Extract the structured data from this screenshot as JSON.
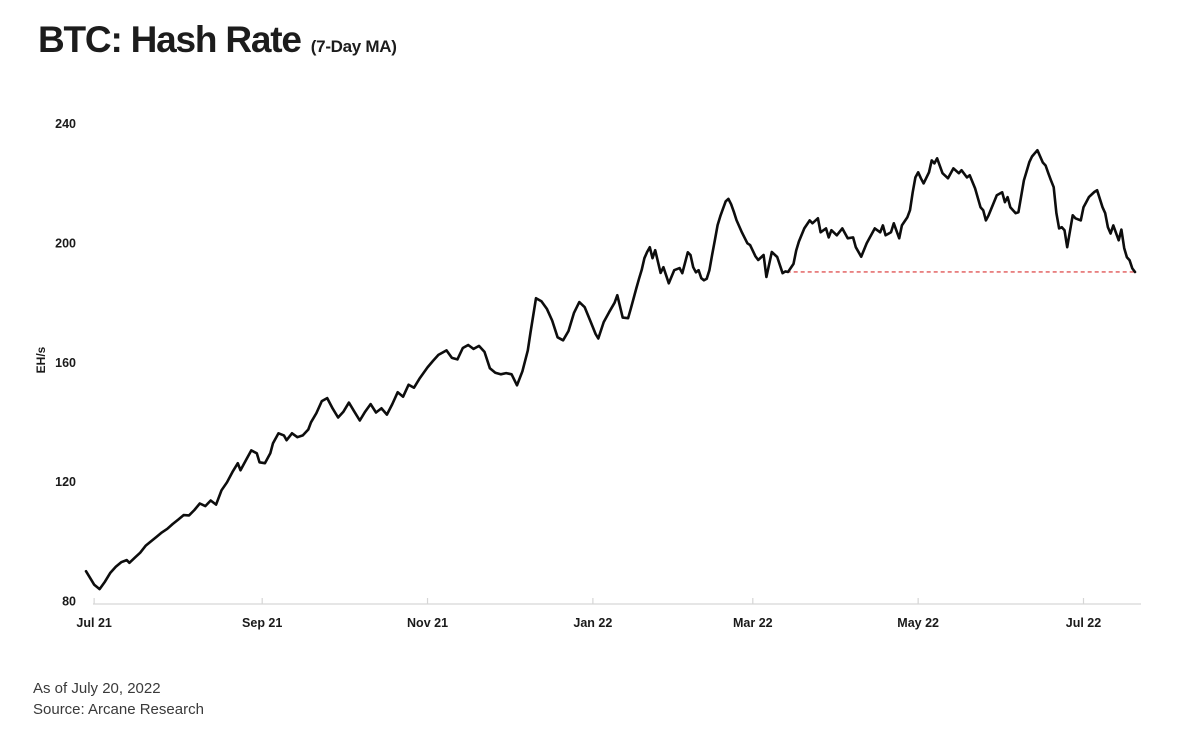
{
  "header": {
    "title": "BTC: Hash Rate",
    "subtitle": "(7-Day MA)"
  },
  "footer": {
    "as_of": "As of July 20, 2022",
    "source": "Source: Arcane Research"
  },
  "colors": {
    "background": "#ffffff",
    "line": "#0d0d0d",
    "reference": "#e05757",
    "axis": "#d6d6d6",
    "text": "#1a1a1a",
    "footer_text": "#3a3a3a"
  },
  "chart_data": {
    "type": "line",
    "title": "BTC: Hash Rate (7-Day MA)",
    "xlabel": "",
    "ylabel": "EH/s",
    "ylim": [
      80,
      240
    ],
    "yticks": [
      80,
      120,
      160,
      200,
      240
    ],
    "grid": false,
    "legend": false,
    "x_domain_days": [
      -3,
      384
    ],
    "x_domain_note": "days relative to Jul 1 2021; series ends Jul 20 2022",
    "xticks": [
      {
        "label": "Jul 21",
        "day": 0
      },
      {
        "label": "Sep 21",
        "day": 62
      },
      {
        "label": "Nov 21",
        "day": 123
      },
      {
        "label": "Jan 22",
        "day": 184
      },
      {
        "label": "Mar 22",
        "day": 243
      },
      {
        "label": "May 22",
        "day": 304
      },
      {
        "label": "Jul 22",
        "day": 365
      }
    ],
    "reference_line": {
      "value": 190.3,
      "from_day": 255.5,
      "to_day": 384,
      "color": "#e05757",
      "dash": [
        4,
        3
      ]
    },
    "series": [
      {
        "name": "BTC hash rate, 7-day moving average (EH/s)",
        "color": "#0d0d0d",
        "points": [
          [
            -3,
            90
          ],
          [
            -1,
            87
          ],
          [
            0,
            85.5
          ],
          [
            2,
            84
          ],
          [
            4,
            86.5
          ],
          [
            6,
            89.5
          ],
          [
            8,
            91.5
          ],
          [
            10,
            93
          ],
          [
            12,
            93.7
          ],
          [
            13,
            92.8
          ],
          [
            15,
            94.5
          ],
          [
            17,
            96.2
          ],
          [
            19,
            98.5
          ],
          [
            21,
            100
          ],
          [
            23,
            101.5
          ],
          [
            25,
            103
          ],
          [
            27,
            104.2
          ],
          [
            29,
            105.8
          ],
          [
            31,
            107.3
          ],
          [
            33,
            108.8
          ],
          [
            35,
            108.7
          ],
          [
            37,
            110.5
          ],
          [
            39,
            112.7
          ],
          [
            41,
            111.8
          ],
          [
            43,
            113.7
          ],
          [
            45,
            112.3
          ],
          [
            47,
            117.1
          ],
          [
            49,
            119.8
          ],
          [
            51,
            123.2
          ],
          [
            53,
            126.2
          ],
          [
            54,
            123.8
          ],
          [
            56,
            127.2
          ],
          [
            58,
            130.5
          ],
          [
            60,
            129.5
          ],
          [
            61,
            126.5
          ],
          [
            63,
            126.2
          ],
          [
            65,
            129.5
          ],
          [
            66,
            132.9
          ],
          [
            68,
            136.2
          ],
          [
            70,
            135.5
          ],
          [
            71,
            133.9
          ],
          [
            73,
            136.2
          ],
          [
            75,
            134.9
          ],
          [
            77,
            135.5
          ],
          [
            79,
            137.5
          ],
          [
            80,
            139.9
          ],
          [
            82,
            143
          ],
          [
            84,
            147
          ],
          [
            86,
            148
          ],
          [
            88,
            144.5
          ],
          [
            90,
            141.5
          ],
          [
            92,
            143.5
          ],
          [
            94,
            146.5
          ],
          [
            96,
            143.5
          ],
          [
            98,
            140.5
          ],
          [
            100,
            143.5
          ],
          [
            102,
            146
          ],
          [
            104,
            143.2
          ],
          [
            106,
            144.6
          ],
          [
            108,
            142.5
          ],
          [
            110,
            146
          ],
          [
            112,
            150
          ],
          [
            114,
            148.5
          ],
          [
            116,
            152.5
          ],
          [
            118,
            151.5
          ],
          [
            120,
            154.5
          ],
          [
            123,
            158.3
          ],
          [
            125,
            160.5
          ],
          [
            127,
            162.5
          ],
          [
            130,
            164
          ],
          [
            132,
            161.5
          ],
          [
            134,
            161
          ],
          [
            136,
            164.8
          ],
          [
            138,
            165.8
          ],
          [
            140,
            164.5
          ],
          [
            142,
            165.5
          ],
          [
            144,
            163.5
          ],
          [
            146,
            158
          ],
          [
            148,
            156.5
          ],
          [
            150,
            156
          ],
          [
            152,
            156.4
          ],
          [
            154,
            156
          ],
          [
            156,
            152.3
          ],
          [
            158,
            157
          ],
          [
            160,
            164
          ],
          [
            161,
            170
          ],
          [
            163,
            181.5
          ],
          [
            165,
            180.5
          ],
          [
            167,
            178
          ],
          [
            169,
            174
          ],
          [
            171,
            168.4
          ],
          [
            173,
            167.4
          ],
          [
            175,
            170.5
          ],
          [
            177,
            176.5
          ],
          [
            179,
            180.2
          ],
          [
            181,
            178.5
          ],
          [
            183,
            174
          ],
          [
            185,
            169.5
          ],
          [
            186,
            168
          ],
          [
            188,
            173.5
          ],
          [
            190,
            176.8
          ],
          [
            192,
            180
          ],
          [
            193,
            182.5
          ],
          [
            195,
            175
          ],
          [
            197,
            174.8
          ],
          [
            198,
            178
          ],
          [
            200,
            184.8
          ],
          [
            201,
            188
          ],
          [
            202,
            191
          ],
          [
            203,
            194.9
          ],
          [
            204,
            197
          ],
          [
            205,
            198.6
          ],
          [
            206,
            194.9
          ],
          [
            207,
            197.6
          ],
          [
            209,
            190
          ],
          [
            210,
            191.9
          ],
          [
            212,
            186.5
          ],
          [
            214,
            190.9
          ],
          [
            216,
            191.6
          ],
          [
            217,
            189.9
          ],
          [
            219,
            196.9
          ],
          [
            220,
            196
          ],
          [
            221,
            191.9
          ],
          [
            222,
            190.2
          ],
          [
            223,
            190.9
          ],
          [
            224,
            188.2
          ],
          [
            225,
            187.5
          ],
          [
            226,
            188
          ],
          [
            227,
            190.9
          ],
          [
            228,
            196
          ],
          [
            229,
            201
          ],
          [
            230,
            206
          ],
          [
            231,
            209
          ],
          [
            232,
            211.5
          ],
          [
            233,
            214
          ],
          [
            234,
            214.8
          ],
          [
            235,
            213
          ],
          [
            236,
            210.5
          ],
          [
            237,
            207.7
          ],
          [
            239,
            203.5
          ],
          [
            241,
            199.9
          ],
          [
            242,
            199.3
          ],
          [
            244,
            195.5
          ],
          [
            245,
            194.3
          ],
          [
            247,
            196
          ],
          [
            248,
            188.6
          ],
          [
            250,
            197
          ],
          [
            252,
            195.3
          ],
          [
            254,
            189.9
          ],
          [
            255,
            190.5
          ],
          [
            256,
            190.3
          ],
          [
            258,
            193
          ],
          [
            259,
            197.5
          ],
          [
            260,
            200.5
          ],
          [
            262,
            204.9
          ],
          [
            264,
            207.6
          ],
          [
            265,
            206.6
          ],
          [
            267,
            208.3
          ],
          [
            268,
            203.6
          ],
          [
            270,
            204.9
          ],
          [
            271,
            201.9
          ],
          [
            272,
            204.3
          ],
          [
            274,
            202.6
          ],
          [
            276,
            204.9
          ],
          [
            278,
            201.6
          ],
          [
            280,
            201.9
          ],
          [
            281,
            198.6
          ],
          [
            283,
            195.4
          ],
          [
            285,
            199.9
          ],
          [
            286,
            201.6
          ],
          [
            288,
            204.9
          ],
          [
            290,
            203.6
          ],
          [
            291,
            205.9
          ],
          [
            292,
            202.6
          ],
          [
            294,
            203.6
          ],
          [
            295,
            206.6
          ],
          [
            297,
            201.6
          ],
          [
            298,
            205.9
          ],
          [
            300,
            208.6
          ],
          [
            301,
            211
          ],
          [
            302,
            217
          ],
          [
            303,
            222
          ],
          [
            304,
            223.7
          ],
          [
            305,
            221.7
          ],
          [
            306,
            220
          ],
          [
            308,
            223.7
          ],
          [
            309,
            227.7
          ],
          [
            310,
            226.7
          ],
          [
            311,
            228.4
          ],
          [
            313,
            223.4
          ],
          [
            315,
            221.7
          ],
          [
            317,
            225
          ],
          [
            319,
            223.4
          ],
          [
            320,
            224.4
          ],
          [
            322,
            222
          ],
          [
            323,
            222.7
          ],
          [
            325,
            218.3
          ],
          [
            327,
            212
          ],
          [
            328,
            211
          ],
          [
            329,
            207.6
          ],
          [
            330,
            209.3
          ],
          [
            333,
            216
          ],
          [
            335,
            217
          ],
          [
            336,
            213.7
          ],
          [
            337,
            215.4
          ],
          [
            338,
            212
          ],
          [
            340,
            210
          ],
          [
            341,
            210.3
          ],
          [
            343,
            221
          ],
          [
            344,
            224
          ],
          [
            345,
            227.1
          ],
          [
            346,
            229
          ],
          [
            348,
            231.1
          ],
          [
            350,
            227
          ],
          [
            351,
            226
          ],
          [
            352,
            223.4
          ],
          [
            353,
            221
          ],
          [
            354,
            218.7
          ],
          [
            355,
            210
          ],
          [
            356,
            204.9
          ],
          [
            357,
            205.3
          ],
          [
            358,
            204.3
          ],
          [
            359,
            198.6
          ],
          [
            361,
            209.3
          ],
          [
            362,
            208.3
          ],
          [
            364,
            207.6
          ],
          [
            365,
            212
          ],
          [
            366,
            213.7
          ],
          [
            367,
            215.4
          ],
          [
            369,
            217.1
          ],
          [
            370,
            217.7
          ],
          [
            372,
            212
          ],
          [
            373,
            210
          ],
          [
            374,
            205.3
          ],
          [
            375,
            203.2
          ],
          [
            376,
            205.9
          ],
          [
            378,
            200.9
          ],
          [
            379,
            204.5
          ],
          [
            380,
            198.3
          ],
          [
            381,
            195.2
          ],
          [
            382,
            194.2
          ],
          [
            383,
            191.5
          ],
          [
            384,
            190.3
          ]
        ]
      }
    ]
  }
}
